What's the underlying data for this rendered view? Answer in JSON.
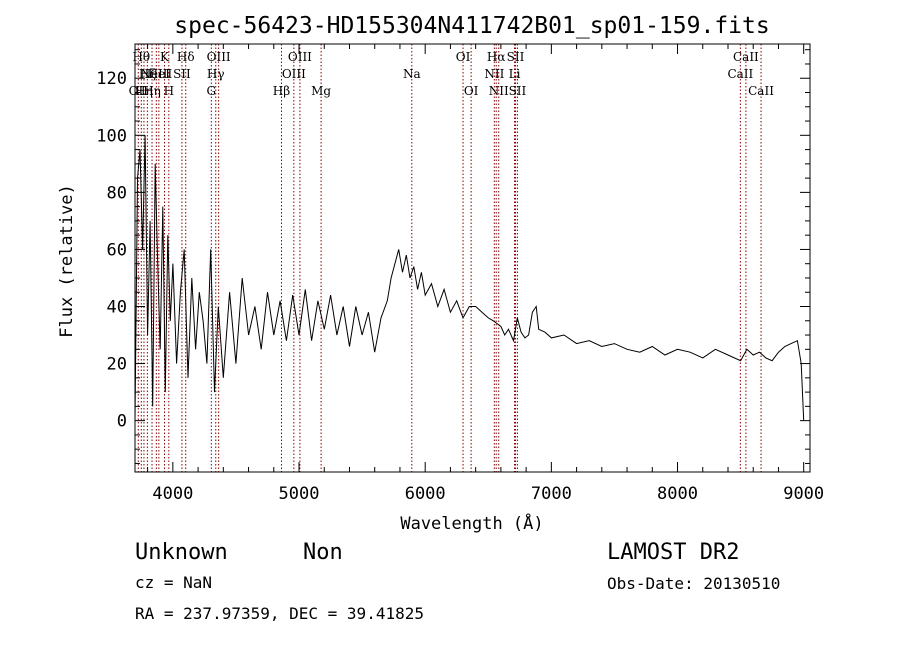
{
  "chart_data": {
    "type": "line",
    "title": "spec-56423-HD155304N411742B01_sp01-159.fits",
    "xlabel": "Wavelength (Å)",
    "ylabel": "Flux (relative)",
    "xlim": [
      3700,
      9050
    ],
    "ylim": [
      -18,
      132
    ],
    "xticks": [
      4000,
      5000,
      6000,
      7000,
      8000,
      9000
    ],
    "yticks": [
      0,
      20,
      40,
      60,
      80,
      100,
      120
    ],
    "grid": false,
    "line_color": "#000000",
    "marker_color": "#8b0000",
    "series": [
      {
        "x": [
          3700,
          3720,
          3740,
          3760,
          3780,
          3800,
          3820,
          3840,
          3860,
          3880,
          3900,
          3920,
          3940,
          3960,
          3980,
          4000,
          4030,
          4060,
          4090,
          4120,
          4150,
          4180,
          4210,
          4240,
          4270,
          4300,
          4330,
          4360,
          4400,
          4450,
          4500,
          4550,
          4600,
          4650,
          4700,
          4750,
          4800,
          4850,
          4900,
          4950,
          5000,
          5050,
          5100,
          5150,
          5200,
          5250,
          5300,
          5350,
          5400,
          5450,
          5500,
          5550,
          5600,
          5650,
          5700,
          5730,
          5760,
          5790,
          5820,
          5850,
          5880,
          5910,
          5940,
          5970,
          6000,
          6050,
          6100,
          6150,
          6200,
          6250,
          6300,
          6350,
          6400,
          6450,
          6500,
          6540,
          6570,
          6600,
          6630,
          6660,
          6700,
          6730,
          6760,
          6790,
          6820,
          6850,
          6880,
          6900,
          6950,
          7000,
          7100,
          7200,
          7300,
          7400,
          7500,
          7600,
          7700,
          7800,
          7900,
          8000,
          8100,
          8200,
          8300,
          8400,
          8500,
          8550,
          8600,
          8650,
          8700,
          8750,
          8800,
          8850,
          8900,
          8950,
          8980,
          9000
        ],
        "y": [
          0,
          85,
          95,
          60,
          100,
          30,
          70,
          5,
          90,
          55,
          25,
          75,
          10,
          65,
          35,
          55,
          20,
          45,
          60,
          15,
          50,
          25,
          45,
          35,
          20,
          60,
          10,
          40,
          15,
          45,
          20,
          50,
          30,
          40,
          25,
          45,
          30,
          42,
          28,
          44,
          30,
          46,
          28,
          42,
          32,
          44,
          30,
          40,
          26,
          40,
          30,
          38,
          24,
          36,
          42,
          50,
          55,
          60,
          52,
          58,
          50,
          54,
          46,
          52,
          44,
          48,
          40,
          46,
          38,
          42,
          36,
          40,
          40,
          38,
          36,
          35,
          34,
          33,
          30,
          32,
          28,
          36,
          31,
          29,
          30,
          38,
          40,
          32,
          31,
          29,
          30,
          27,
          28,
          26,
          27,
          25,
          24,
          26,
          23,
          25,
          24,
          22,
          25,
          23,
          21,
          25,
          23,
          24,
          22,
          21,
          24,
          26,
          27,
          28,
          20,
          0
        ]
      }
    ],
    "line_markers": [
      {
        "x": 3726,
        "label": "OII",
        "row": 3
      },
      {
        "x": 3750,
        "label": "Hθ",
        "row": 1
      },
      {
        "x": 3771,
        "label": "Hη",
        "row": 3
      },
      {
        "x": 3798,
        "label": "Hζ",
        "row": 2
      },
      {
        "x": 3835,
        "label": "Hη",
        "row": 3
      },
      {
        "x": 3869,
        "label": "NeIII",
        "row": 2
      },
      {
        "x": 3889,
        "label": "HeI",
        "row": 2
      },
      {
        "x": 3934,
        "label": "K",
        "row": 1
      },
      {
        "x": 3968,
        "label": "H",
        "row": 3
      },
      {
        "x": 4072,
        "label": "SII",
        "row": 2
      },
      {
        "x": 4102,
        "label": "Hδ",
        "row": 1
      },
      {
        "x": 4305,
        "label": "G",
        "row": 3
      },
      {
        "x": 4340,
        "label": "Hγ",
        "row": 2
      },
      {
        "x": 4363,
        "label": "OIII",
        "row": 1
      },
      {
        "x": 4861,
        "label": "Hβ",
        "row": 3
      },
      {
        "x": 4959,
        "label": "OIII",
        "row": 2
      },
      {
        "x": 5007,
        "label": "OIII",
        "row": 1
      },
      {
        "x": 5175,
        "label": "Mg",
        "row": 3
      },
      {
        "x": 5894,
        "label": "Na",
        "row": 2
      },
      {
        "x": 6300,
        "label": "OI",
        "row": 1
      },
      {
        "x": 6364,
        "label": "OI",
        "row": 3
      },
      {
        "x": 6548,
        "label": "NII",
        "row": 2
      },
      {
        "x": 6563,
        "label": "Hα",
        "row": 1
      },
      {
        "x": 6583,
        "label": "NII",
        "row": 3
      },
      {
        "x": 6708,
        "label": "Li",
        "row": 2
      },
      {
        "x": 6716,
        "label": "SII",
        "row": 1
      },
      {
        "x": 6731,
        "label": "SII",
        "row": 3
      },
      {
        "x": 8498,
        "label": "CaII",
        "row": 2
      },
      {
        "x": 8542,
        "label": "CaII",
        "row": 1
      },
      {
        "x": 8662,
        "label": "CaII",
        "row": 3
      }
    ]
  },
  "info": {
    "class": "Unknown",
    "subclass": "Non",
    "cz": "cz = NaN",
    "radec": "RA = 237.97359, DEC =  39.41825",
    "survey": "LAMOST DR2",
    "obs_date": "Obs-Date: 20130510"
  }
}
